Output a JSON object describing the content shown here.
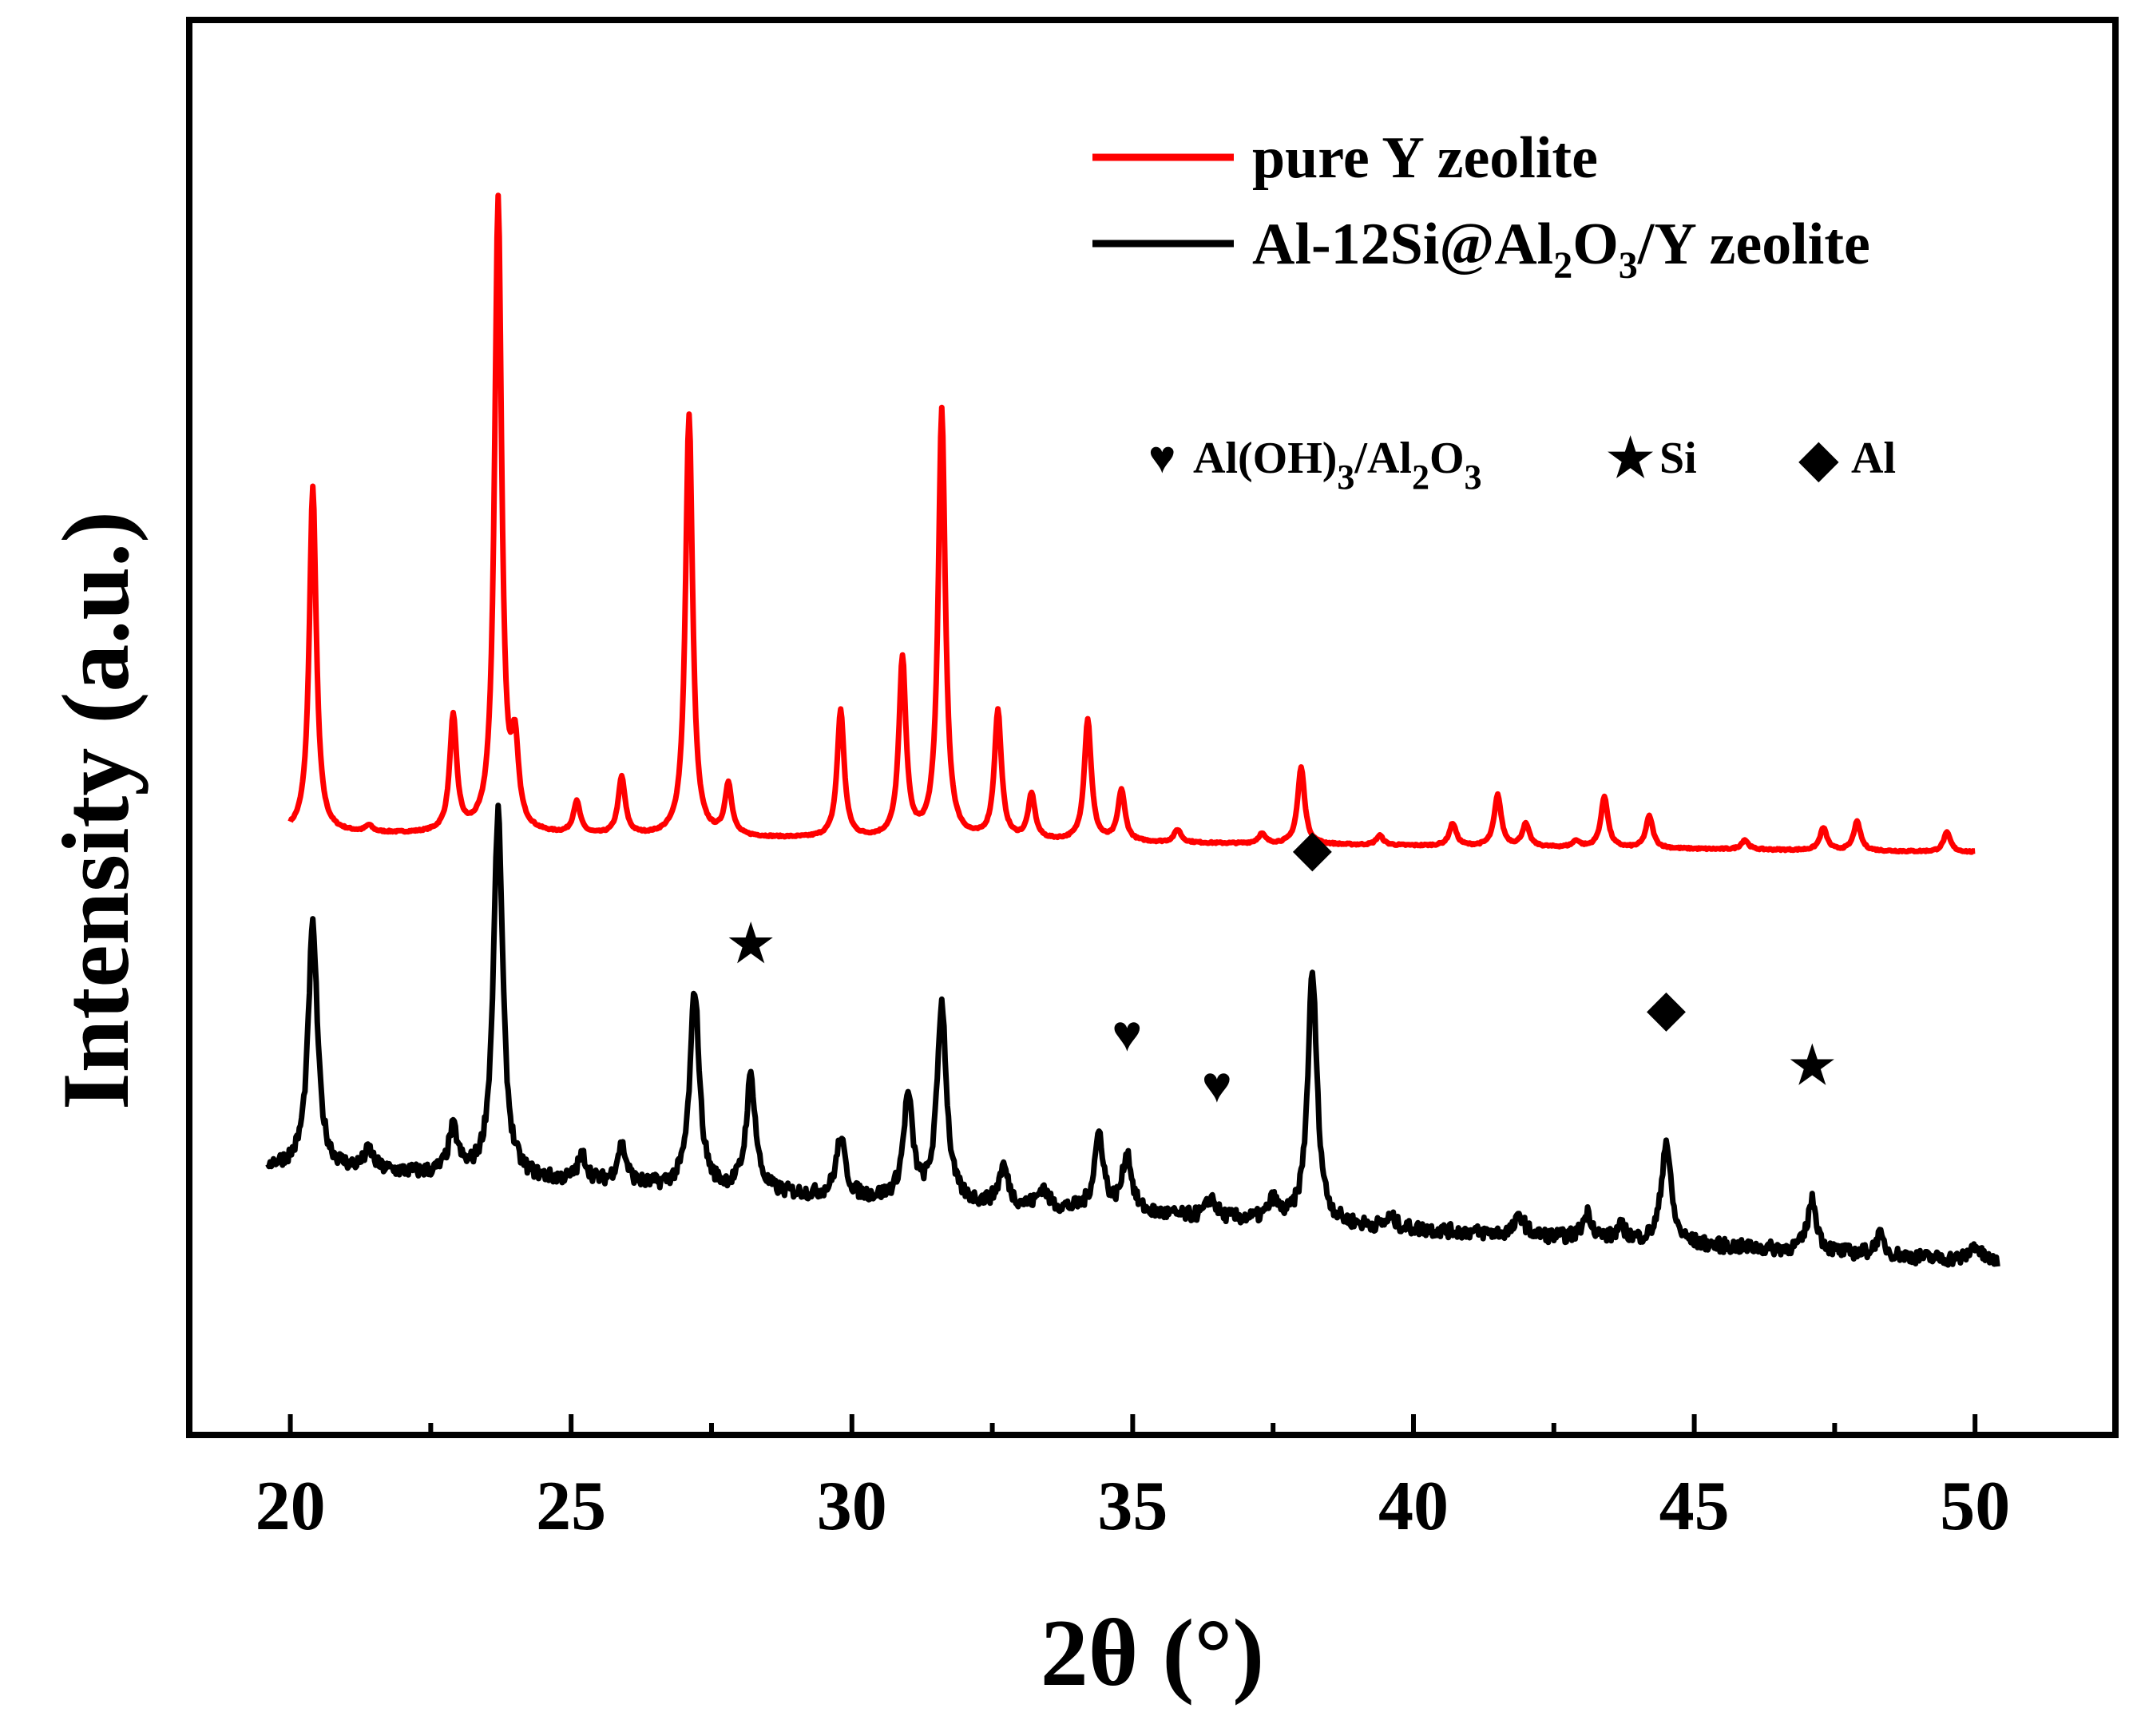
{
  "chart_data": {
    "type": "line",
    "title": "",
    "xlabel": "2θ (°)",
    "ylabel": "Intensity (a.u.)",
    "xlim": [
      18.2,
      52.5
    ],
    "ylim": [
      -1.3,
      20.8
    ],
    "x_ticks": [
      20,
      25,
      30,
      35,
      40,
      45,
      50
    ],
    "x_minor_step": 2.5,
    "y_ticks_shown": false,
    "grid": false,
    "colors": {
      "pure_y": "#ff0000",
      "composite": "#000000",
      "axis": "#000000"
    },
    "series": [
      {
        "name": "pure Y zeolite",
        "color": "#ff0000",
        "x_range": [
          20.0,
          50.0
        ],
        "baseline": 8.1,
        "baseline_end": 7.8,
        "peaks": [
          {
            "x": 20.4,
            "height": 5.4
          },
          {
            "x": 21.4,
            "height": 0.1
          },
          {
            "x": 22.9,
            "height": 1.8
          },
          {
            "x": 23.7,
            "height": 9.9
          },
          {
            "x": 24.0,
            "height": 1.2
          },
          {
            "x": 25.1,
            "height": 0.5
          },
          {
            "x": 25.9,
            "height": 0.9
          },
          {
            "x": 27.1,
            "height": 6.6
          },
          {
            "x": 27.8,
            "height": 0.8
          },
          {
            "x": 29.8,
            "height": 2.0
          },
          {
            "x": 30.9,
            "height": 2.8
          },
          {
            "x": 31.6,
            "height": 6.7
          },
          {
            "x": 32.6,
            "height": 2.0
          },
          {
            "x": 33.2,
            "height": 0.7
          },
          {
            "x": 34.2,
            "height": 1.9
          },
          {
            "x": 34.8,
            "height": 0.8
          },
          {
            "x": 35.8,
            "height": 0.2
          },
          {
            "x": 37.3,
            "height": 0.15
          },
          {
            "x": 38.0,
            "height": 1.2
          },
          {
            "x": 39.4,
            "height": 0.15
          },
          {
            "x": 40.7,
            "height": 0.35
          },
          {
            "x": 41.5,
            "height": 0.8
          },
          {
            "x": 42.0,
            "height": 0.35
          },
          {
            "x": 42.9,
            "height": 0.1
          },
          {
            "x": 43.4,
            "height": 0.8
          },
          {
            "x": 44.2,
            "height": 0.5
          },
          {
            "x": 45.9,
            "height": 0.15
          },
          {
            "x": 47.3,
            "height": 0.35
          },
          {
            "x": 47.9,
            "height": 0.45
          },
          {
            "x": 49.5,
            "height": 0.3
          }
        ]
      },
      {
        "name": "Al-12Si@Al2O3/Y zeolite",
        "color": "#000000",
        "x_range": [
          19.6,
          50.4
        ],
        "baseline": 2.9,
        "baseline_end": 1.4,
        "peaks": [
          {
            "x": 20.4,
            "height": 3.8
          },
          {
            "x": 21.4,
            "height": 0.3
          },
          {
            "x": 22.9,
            "height": 0.7
          },
          {
            "x": 23.7,
            "height": 5.7
          },
          {
            "x": 25.2,
            "height": 0.4
          },
          {
            "x": 25.9,
            "height": 0.6
          },
          {
            "x": 27.2,
            "height": 3.1
          },
          {
            "x": 28.2,
            "height": 1.8
          },
          {
            "x": 29.8,
            "height": 0.9
          },
          {
            "x": 31.0,
            "height": 1.6
          },
          {
            "x": 31.6,
            "height": 3.1
          },
          {
            "x": 32.7,
            "height": 0.6
          },
          {
            "x": 33.4,
            "height": 0.3
          },
          {
            "x": 34.4,
            "height": 1.2
          },
          {
            "x": 34.9,
            "height": 0.9
          },
          {
            "x": 36.4,
            "height": 0.3
          },
          {
            "x": 37.5,
            "height": 0.3
          },
          {
            "x": 38.2,
            "height": 3.9
          },
          {
            "x": 39.6,
            "height": 0.15
          },
          {
            "x": 41.9,
            "height": 0.3
          },
          {
            "x": 43.1,
            "height": 0.4
          },
          {
            "x": 43.7,
            "height": 0.2
          },
          {
            "x": 44.5,
            "height": 1.6
          },
          {
            "x": 47.1,
            "height": 0.8
          },
          {
            "x": 48.3,
            "height": 0.3
          },
          {
            "x": 50.0,
            "height": 0.25
          }
        ]
      }
    ],
    "legend": {
      "position": "top-right",
      "entries": [
        {
          "label": "pure Y zeolite",
          "color": "#ff0000"
        },
        {
          "label_parts": [
            "Al-12Si@Al",
            "2",
            "O",
            "3",
            "/Y zeolite"
          ],
          "color": "#000000"
        }
      ]
    },
    "symbol_key": [
      {
        "symbol": "♥",
        "label_parts": [
          "Al(OH)",
          "3",
          "/Al",
          "2",
          "O",
          "3"
        ]
      },
      {
        "symbol": "★",
        "label_parts": [
          "Si"
        ]
      },
      {
        "symbol": "◆",
        "label_parts": [
          "Al"
        ]
      }
    ],
    "annotations": [
      {
        "symbol": "★",
        "meaning": "Si",
        "x": 28.2,
        "y": 6.1
      },
      {
        "symbol": "♥",
        "meaning": "Al(OH)3/Al2O3",
        "x": 34.9,
        "y": 4.7
      },
      {
        "symbol": "♥",
        "meaning": "Al(OH)3/Al2O3",
        "x": 36.5,
        "y": 3.9
      },
      {
        "symbol": "◆",
        "meaning": "Al",
        "x": 38.2,
        "y": 7.6
      },
      {
        "symbol": "◆",
        "meaning": "Al",
        "x": 44.5,
        "y": 5.1
      },
      {
        "symbol": "★",
        "meaning": "Si",
        "x": 47.1,
        "y": 4.2
      }
    ]
  }
}
